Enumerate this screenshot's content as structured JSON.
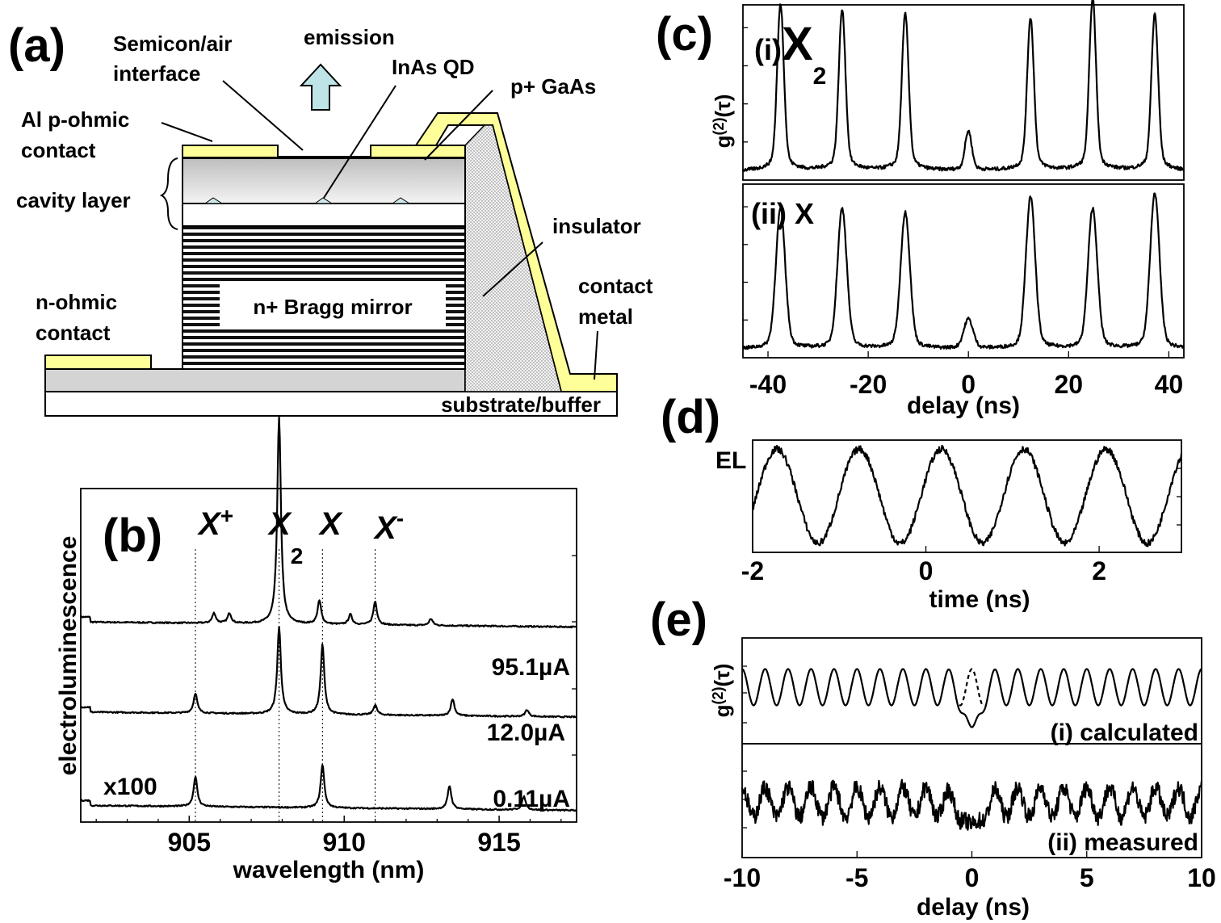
{
  "panel_a": {
    "label": "(a)",
    "semicon_air": [
      "Semicon/air",
      "interface"
    ],
    "emission": "emission",
    "inas_qd": "InAs QD",
    "p_gaas": "p+ GaAs",
    "al_contact": [
      "Al p-ohmic",
      "contact"
    ],
    "cavity_layer": "cavity layer",
    "insulator": "insulator",
    "n_ohmic": [
      "n-ohmic",
      "contact"
    ],
    "bragg": "n+ Bragg mirror",
    "contact_metal": [
      "contact",
      "metal"
    ],
    "substrate": "substrate/buffer",
    "colors": {
      "metal": "#ffff99",
      "arrow": "#bfe4e8",
      "cavity": "#cfcfcf",
      "qd": "#cfe8ea"
    }
  },
  "chart_data": [
    {
      "id": "b",
      "type": "line",
      "panel_label": "(b)",
      "xlabel": "wavelength (nm)",
      "ylabel": "electroluminescence",
      "xlim": [
        901.5,
        917.5
      ],
      "xticks": [
        "905",
        "910",
        "915"
      ],
      "lines": {
        "X+": 905.2,
        "X2": 907.9,
        "X": 909.3,
        "X-": 911.0
      },
      "series": [
        {
          "name": "95.1µA",
          "baseline": 0.6,
          "peaks": [
            [
              905.8,
              0.03
            ],
            [
              906.3,
              0.03
            ],
            [
              907.9,
              0.62
            ],
            [
              909.2,
              0.07
            ],
            [
              910.2,
              0.03
            ],
            [
              911.0,
              0.07
            ],
            [
              912.8,
              0.02
            ]
          ]
        },
        {
          "name": "12.0µA",
          "baseline": 0.33,
          "peaks": [
            [
              905.2,
              0.06
            ],
            [
              907.9,
              0.26
            ],
            [
              909.3,
              0.21
            ],
            [
              911.0,
              0.03
            ],
            [
              913.5,
              0.05
            ],
            [
              915.9,
              0.02
            ]
          ]
        },
        {
          "name": "0.11µA",
          "baseline": 0.05,
          "peaks": [
            [
              905.2,
              0.09
            ],
            [
              909.3,
              0.13
            ],
            [
              913.4,
              0.07
            ],
            [
              915.8,
              0.04
            ]
          ]
        }
      ]
    },
    {
      "id": "c",
      "type": "line",
      "panel_label": "(c)",
      "xlabel": "delay (ns)",
      "ylabel": "g(2)(τ)",
      "xlim": [
        -45,
        43
      ],
      "xticks": [
        "-40",
        "-20",
        "0",
        "20",
        "40"
      ],
      "series": [
        {
          "name": "X2",
          "peaks": [
            [
              -37.5,
              0.85
            ],
            [
              -25.2,
              0.82
            ],
            [
              -12.6,
              0.8
            ],
            [
              0,
              0.2
            ],
            [
              12.4,
              0.78
            ],
            [
              24.8,
              0.88
            ],
            [
              37.2,
              0.8
            ]
          ]
        },
        {
          "name": "X",
          "peaks": [
            [
              -37.5,
              0.72
            ],
            [
              -25.2,
              0.72
            ],
            [
              -12.6,
              0.7
            ],
            [
              0,
              0.15
            ],
            [
              12.4,
              0.78
            ],
            [
              24.8,
              0.72
            ],
            [
              37.2,
              0.8
            ]
          ]
        }
      ]
    },
    {
      "id": "d",
      "type": "line",
      "panel_label": "(d)",
      "xlabel": "time (ns)",
      "ylabel": "EL",
      "xlim": [
        -2.0,
        2.95
      ],
      "xticks": [
        "-2",
        "0",
        "2"
      ],
      "period_ns": 0.95
    },
    {
      "id": "e",
      "type": "line",
      "panel_label": "(e)",
      "xlabel": "delay (ns)",
      "ylabel": "g(2)(τ)",
      "xlim": [
        -10,
        10
      ],
      "xticks": [
        "-10",
        "-5",
        "0",
        "5",
        "10"
      ],
      "series": [
        {
          "name": "(i) calculated",
          "period_ns": 1.0
        },
        {
          "name": "(ii) measured",
          "period_ns": 1.0
        }
      ]
    }
  ]
}
